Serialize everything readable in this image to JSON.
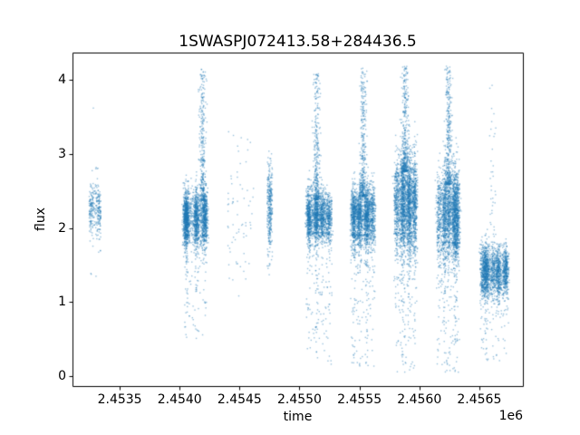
{
  "chart_data": {
    "type": "scatter",
    "title": "1SWASPJ072413.58+284436.5",
    "xlabel": "time",
    "ylabel": "flux",
    "x_offset_text": "1e6",
    "xlim": [
      2453106,
      2456864
    ],
    "ylim": [
      -0.135,
      4.37
    ],
    "xticks": [
      {
        "value": 2453500,
        "label": "2.4535"
      },
      {
        "value": 2454000,
        "label": "2.4540"
      },
      {
        "value": 2454500,
        "label": "2.4545"
      },
      {
        "value": 2455000,
        "label": "2.4550"
      },
      {
        "value": 2455500,
        "label": "2.4555"
      },
      {
        "value": 2456000,
        "label": "2.4560"
      },
      {
        "value": 2456500,
        "label": "2.4565"
      }
    ],
    "yticks": [
      {
        "value": 0,
        "label": "0"
      },
      {
        "value": 1,
        "label": "1"
      },
      {
        "value": 2,
        "label": "2"
      },
      {
        "value": 3,
        "label": "3"
      },
      {
        "value": 4,
        "label": "4"
      }
    ],
    "marker_color": "#1f77b4",
    "marker_alpha": 0.45,
    "marker_size_px": 1.4,
    "grid": false,
    "legend": null,
    "clusters": [
      {
        "t_center": 2453293,
        "t_halfwidth": 45,
        "n": 300,
        "flux_mean": 2.25,
        "flux_std": 0.16,
        "top_frac": 0.03,
        "top_max": 2.95,
        "top_pow": 2.0,
        "bottom_frac": 0.09,
        "bottom_min": 0.78,
        "stripes": 2,
        "tail_x_offset": 0
      },
      {
        "t_center": 2454128,
        "t_halfwidth": 110,
        "n": 2600,
        "flux_mean": 2.14,
        "flux_std": 0.18,
        "top_frac": 0.13,
        "top_max": 4.16,
        "top_pow": 1.9,
        "bottom_frac": 0.08,
        "bottom_min": 0.47,
        "stripes": 3,
        "tail_x_offset": 65
      },
      {
        "t_center": 2454512,
        "t_halfwidth": 110,
        "n": 70,
        "flux_mean": 2.2,
        "flux_std": 0.5,
        "top_frac": 0.06,
        "top_max": 3.3,
        "top_pow": 1.5,
        "bottom_frac": 0.06,
        "bottom_min": 0.88,
        "stripes": 0,
        "tail_x_offset": 0
      },
      {
        "t_center": 2454752,
        "t_halfwidth": 20,
        "n": 330,
        "flux_mean": 2.28,
        "flux_std": 0.27,
        "top_frac": 0.05,
        "top_max": 3.16,
        "top_pow": 1.8,
        "bottom_frac": 0.05,
        "bottom_min": 1.3,
        "stripes": 1,
        "tail_x_offset": 0
      },
      {
        "t_center": 2455168,
        "t_halfwidth": 115,
        "n": 2300,
        "flux_mean": 2.16,
        "flux_std": 0.17,
        "top_frac": 0.14,
        "top_max": 4.1,
        "top_pow": 2.0,
        "bottom_frac": 0.1,
        "bottom_min": 0.15,
        "stripes": 4,
        "tail_x_offset": -25
      },
      {
        "t_center": 2455530,
        "t_halfwidth": 115,
        "n": 2600,
        "flux_mean": 2.17,
        "flux_std": 0.2,
        "top_frac": 0.15,
        "top_max": 4.16,
        "top_pow": 2.0,
        "bottom_frac": 0.1,
        "bottom_min": 0.13,
        "stripes": 4,
        "tail_x_offset": 0
      },
      {
        "t_center": 2455880,
        "t_halfwidth": 100,
        "n": 3000,
        "flux_mean": 2.35,
        "flux_std": 0.32,
        "top_frac": 0.12,
        "top_max": 4.2,
        "top_pow": 2.1,
        "bottom_frac": 0.1,
        "bottom_min": 0.05,
        "stripes": 4,
        "tail_x_offset": 0
      },
      {
        "t_center": 2456243,
        "t_halfwidth": 105,
        "n": 2800,
        "flux_mean": 2.2,
        "flux_std": 0.3,
        "top_frac": 0.13,
        "top_max": 4.2,
        "top_pow": 2.1,
        "bottom_frac": 0.11,
        "bottom_min": 0.05,
        "stripes": 5,
        "tail_x_offset": 0
      },
      {
        "t_center": 2456618,
        "t_halfwidth": 125,
        "n": 2000,
        "flux_mean": 1.42,
        "flux_std": 0.17,
        "top_frac": 0.02,
        "top_max": 3.95,
        "top_pow": 1.1,
        "bottom_frac": 0.08,
        "bottom_min": 0.2,
        "stripes": 5,
        "tail_x_offset": -10
      }
    ],
    "outliers": [
      {
        "t": 2453280,
        "flux": 3.62
      }
    ]
  }
}
